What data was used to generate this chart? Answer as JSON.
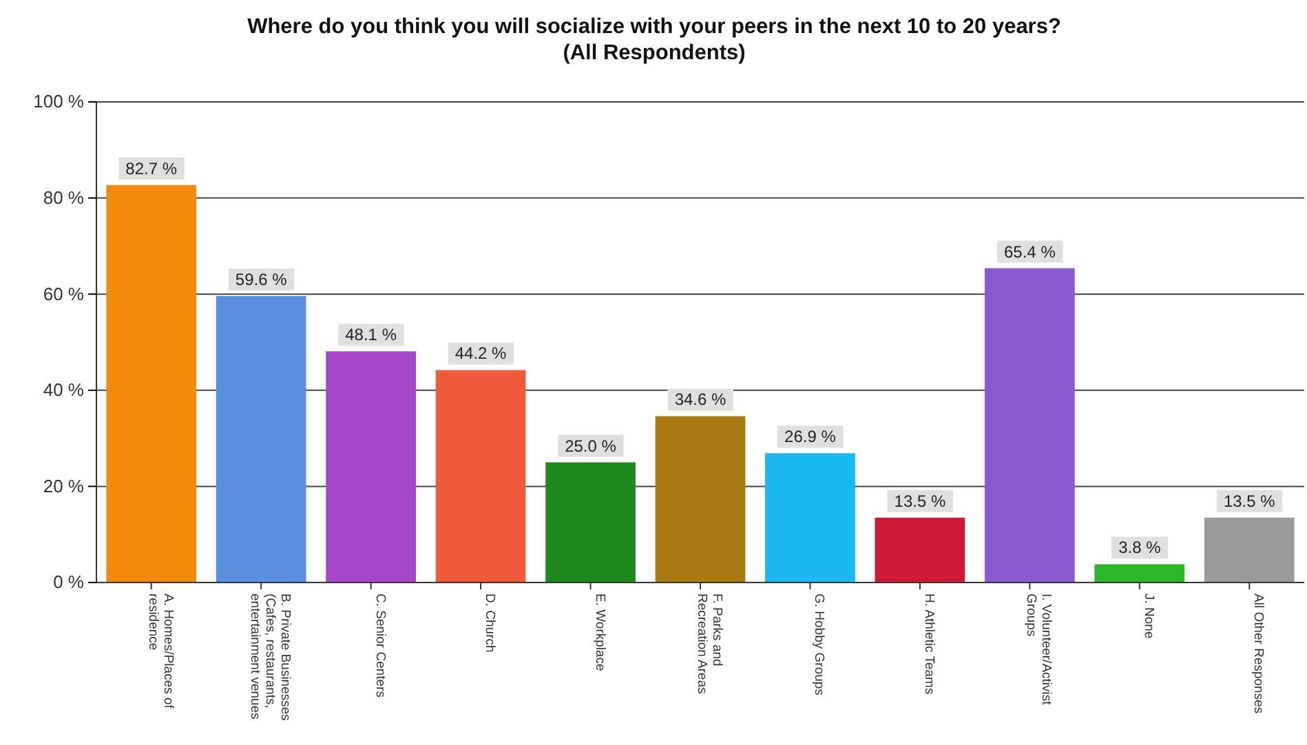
{
  "chart_data": {
    "type": "bar",
    "title": "Where do you think you will socialize with your peers in the next 10 to 20 years?",
    "subtitle": "(All Respondents)",
    "categories": [
      "A. Homes/Places of residence",
      "B. Private Businesses (Cafes, restaurants, entertainment venues",
      "C. Senior Centers",
      "D. Church",
      "E. Workplace",
      "F. Parks and Recreation Areas",
      "G. Hobby Groups",
      "H. Athletic Teams",
      "I. Volunteer/Activist Groups",
      "J. None",
      "All Other Responses"
    ],
    "values": [
      82.7,
      59.6,
      48.1,
      44.2,
      25.0,
      34.6,
      26.9,
      13.5,
      65.4,
      3.8,
      13.5
    ],
    "value_labels": [
      "82.7 %",
      "59.6 %",
      "48.1 %",
      "44.2 %",
      "25.0 %",
      "34.6 %",
      "26.9 %",
      "13.5 %",
      "65.4 %",
      "3.8 %",
      "13.5 %"
    ],
    "colors": [
      "#f28a0c",
      "#5b8fe0",
      "#a545c8",
      "#f05a3c",
      "#1e8a1e",
      "#a87a10",
      "#1ab8f0",
      "#d01a3a",
      "#8a5ad0",
      "#2ab82a",
      "#9a9a9a"
    ],
    "ylim": [
      0,
      100
    ],
    "yticks": [
      {
        "value": 0,
        "label": "0 %"
      },
      {
        "value": 20,
        "label": "20 %"
      },
      {
        "value": 40,
        "label": "40 %"
      },
      {
        "value": 60,
        "label": "60 %"
      },
      {
        "value": 80,
        "label": "80 %"
      },
      {
        "value": 100,
        "label": "100 %"
      }
    ],
    "grid": "y"
  }
}
